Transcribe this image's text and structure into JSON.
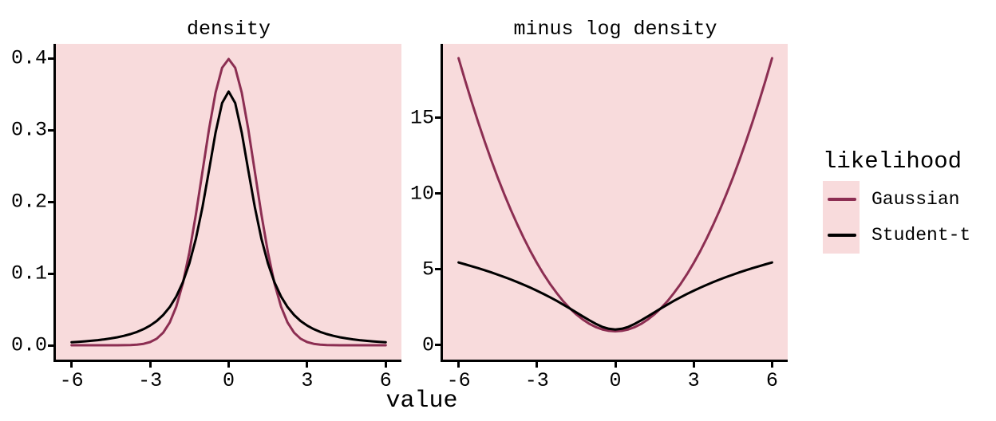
{
  "figure": {
    "xlabel": "value",
    "background": "#ffffff",
    "panel_background": "#f8dbdc",
    "axis_color": "#000000"
  },
  "legend": {
    "title": "likelihood",
    "position": "right",
    "key_background": "#f8dbdc",
    "entries": [
      {
        "label": "Gaussian",
        "color": "#8c2e52"
      },
      {
        "label": "Student-t",
        "color": "#000000"
      }
    ]
  },
  "chart_data": [
    {
      "id": "density",
      "type": "line",
      "title": "density",
      "xlabel": "value",
      "ylabel": "",
      "grid": false,
      "xlim": [
        -6.6,
        6.6
      ],
      "ylim": [
        -0.02,
        0.42
      ],
      "x_ticks": {
        "values": [
          -6,
          -3,
          0,
          3,
          6
        ],
        "labels": [
          "-6",
          "-3",
          "0",
          "3",
          "6"
        ]
      },
      "y_ticks": {
        "values": [
          0.0,
          0.1,
          0.2,
          0.3,
          0.4
        ],
        "labels": [
          "0.0",
          "0.1",
          "0.2",
          "0.3",
          "0.4"
        ]
      },
      "x": [
        -6,
        -5.75,
        -5.5,
        -5.25,
        -5,
        -4.75,
        -4.5,
        -4.25,
        -4,
        -3.75,
        -3.5,
        -3.25,
        -3,
        -2.75,
        -2.5,
        -2.25,
        -2,
        -1.75,
        -1.5,
        -1.25,
        -1,
        -0.75,
        -0.5,
        -0.25,
        0,
        0.25,
        0.5,
        0.75,
        1,
        1.25,
        1.5,
        1.75,
        2,
        2.25,
        2.5,
        2.75,
        3,
        3.25,
        3.5,
        3.75,
        4,
        4.25,
        4.5,
        4.75,
        5,
        5.25,
        5.5,
        5.75,
        6
      ],
      "series": [
        {
          "name": "Gaussian",
          "color": "#8c2e52",
          "values": [
            0.0,
            0.0,
            0.0,
            0.0,
            1e-06,
            5e-06,
            1.6e-05,
            4.8e-05,
            0.000134,
            0.000353,
            0.000873,
            0.002029,
            0.004432,
            0.009094,
            0.017528,
            0.03174,
            0.053991,
            0.086277,
            0.129518,
            0.182649,
            0.241971,
            0.301137,
            0.352065,
            0.386668,
            0.398942,
            0.386668,
            0.352065,
            0.301137,
            0.241971,
            0.182649,
            0.129518,
            0.086277,
            0.053991,
            0.03174,
            0.017528,
            0.009094,
            0.004432,
            0.002029,
            0.000873,
            0.000353,
            0.000134,
            4.8e-05,
            1.6e-05,
            5e-06,
            1e-06,
            0.0,
            0.0,
            0.0,
            0.0
          ]
        },
        {
          "name": "Student-t",
          "color": "#000000",
          "values": [
            0.004274,
            0.004819,
            0.005463,
            0.006224,
            0.007127,
            0.008205,
            0.00953,
            0.011128,
            0.013097,
            0.015543,
            0.018588,
            0.022461,
            0.02741,
            0.033808,
            0.04219,
            0.053276,
            0.068041,
            0.087788,
            0.114142,
            0.148721,
            0.19245,
            0.243775,
            0.296296,
            0.337596,
            0.353553,
            0.337596,
            0.296296,
            0.243775,
            0.19245,
            0.148721,
            0.114142,
            0.087788,
            0.068041,
            0.053276,
            0.04219,
            0.033808,
            0.02741,
            0.022461,
            0.018588,
            0.015543,
            0.013097,
            0.011128,
            0.00953,
            0.008205,
            0.007127,
            0.006224,
            0.005463,
            0.004819,
            0.004274
          ]
        }
      ]
    },
    {
      "id": "minus_log_density",
      "type": "line",
      "title": "minus log density",
      "xlabel": "value",
      "ylabel": "",
      "grid": false,
      "xlim": [
        -6.6,
        6.6
      ],
      "ylim": [
        -0.946,
        19.865
      ],
      "x_ticks": {
        "values": [
          -6,
          -3,
          0,
          3,
          6
        ],
        "labels": [
          "-6",
          "-3",
          "0",
          "3",
          "6"
        ]
      },
      "y_ticks": {
        "values": [
          0,
          5,
          10,
          15
        ],
        "labels": [
          "0",
          "5",
          "10",
          "15"
        ]
      },
      "x": [
        -6,
        -5.75,
        -5.5,
        -5.25,
        -5,
        -4.75,
        -4.5,
        -4.25,
        -4,
        -3.75,
        -3.5,
        -3.25,
        -3,
        -2.75,
        -2.5,
        -2.25,
        -2,
        -1.75,
        -1.5,
        -1.25,
        -1,
        -0.75,
        -0.5,
        -0.25,
        0,
        0.25,
        0.5,
        0.75,
        1,
        1.25,
        1.5,
        1.75,
        2,
        2.25,
        2.5,
        2.75,
        3,
        3.25,
        3.5,
        3.75,
        4,
        4.25,
        4.5,
        4.75,
        5,
        5.25,
        5.5,
        5.75,
        6
      ],
      "series": [
        {
          "name": "Gaussian",
          "color": "#8c2e52",
          "values": [
            18.9189,
            17.4502,
            16.0439,
            14.7002,
            13.4189,
            12.2002,
            11.0439,
            9.9502,
            8.9189,
            7.9502,
            7.0439,
            6.2002,
            5.4189,
            4.7002,
            4.0439,
            3.4502,
            2.9189,
            2.4502,
            2.0439,
            1.7002,
            1.4189,
            1.2002,
            1.0439,
            0.9502,
            0.9189,
            0.9502,
            1.0439,
            1.2002,
            1.4189,
            1.7002,
            2.0439,
            2.4502,
            2.9189,
            3.4502,
            4.0439,
            4.7002,
            5.4189,
            6.2002,
            7.0439,
            7.9502,
            8.9189,
            9.9502,
            11.0439,
            12.2002,
            13.4189,
            14.7002,
            16.0439,
            17.4502,
            18.9189
          ]
        },
        {
          "name": "Student-t",
          "color": "#000000",
          "values": [
            5.4566,
            5.3357,
            5.2098,
            5.0796,
            4.9438,
            4.8018,
            4.6535,
            4.4983,
            4.3356,
            4.1647,
            3.9853,
            3.7959,
            3.5968,
            3.3868,
            3.1653,
            2.9322,
            2.6876,
            2.4328,
            2.1704,
            1.9057,
            1.6479,
            1.4115,
            1.2164,
            1.0859,
            1.0397,
            1.0859,
            1.2164,
            1.4115,
            1.6479,
            1.9057,
            2.1704,
            2.4328,
            2.6876,
            2.9322,
            3.1653,
            3.3868,
            3.5968,
            3.7959,
            3.9853,
            4.1647,
            4.3356,
            4.4983,
            4.6535,
            4.8018,
            4.9438,
            5.0796,
            5.2098,
            5.3357,
            5.4566
          ]
        }
      ]
    }
  ]
}
